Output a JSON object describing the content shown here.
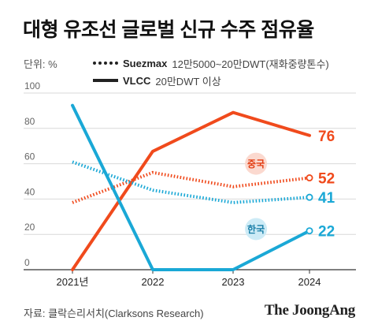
{
  "title": "대형 유조선 글로벌 신규 수주 점유율",
  "unit_label": "단위: %",
  "legend": [
    {
      "name": "Suezmax",
      "desc": "12만5000~20만DWT(재화중량톤수)",
      "style": "dotted"
    },
    {
      "name": "VLCC",
      "desc": "20만DWT 이상",
      "style": "solid"
    }
  ],
  "source": "자료: 클락슨리서치(Clarksons Research)",
  "brand": "The JoongAng",
  "chart_data": {
    "type": "line",
    "categories": [
      "2021년",
      "2022",
      "2023",
      "2024"
    ],
    "ylim": [
      0,
      100
    ],
    "yticks": [
      0,
      20,
      40,
      60,
      80,
      100
    ],
    "grid": true,
    "series": [
      {
        "name": "중국",
        "ship": "VLCC",
        "color": "#f04a1c",
        "values": [
          0,
          67,
          89,
          76
        ]
      },
      {
        "name": "중국",
        "ship": "Suezmax",
        "color": "#f04a1c",
        "values": [
          38,
          55,
          47,
          52
        ]
      },
      {
        "name": "한국",
        "ship": "VLCC",
        "color": "#1aa8d6",
        "values": [
          93,
          0,
          0,
          22
        ]
      },
      {
        "name": "한국",
        "ship": "Suezmax",
        "color": "#1aa8d6",
        "values": [
          61,
          45,
          38,
          41
        ]
      }
    ],
    "end_labels": [
      {
        "text": "76",
        "value": 76,
        "color": "#f04a1c"
      },
      {
        "text": "52",
        "value": 52,
        "color": "#f04a1c"
      },
      {
        "text": "41",
        "value": 41,
        "color": "#1aa8d6"
      },
      {
        "text": "22",
        "value": 22,
        "color": "#1aa8d6"
      }
    ],
    "country_badges": [
      {
        "text": "중국",
        "x": 2.3,
        "y": 60,
        "bg": "#fbd9cf",
        "color": "#e23d12"
      },
      {
        "text": "한국",
        "x": 2.3,
        "y": 23,
        "bg": "#cdebf6",
        "color": "#1a7fa8"
      }
    ]
  }
}
